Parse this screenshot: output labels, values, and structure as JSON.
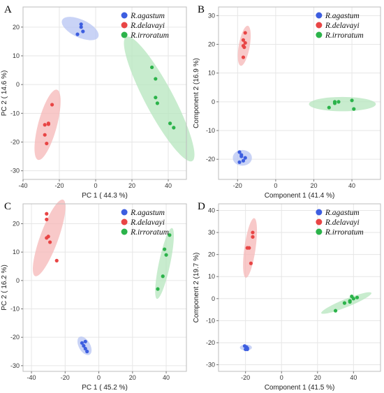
{
  "colors": {
    "R.agastum": "#3d5ee0",
    "R.delavayi": "#e84545",
    "R.irroratum": "#2bb34a",
    "ellipse_fill": {
      "R.agastum": "#b7c4f3",
      "R.delavayi": "#f6b7b7",
      "R.irroratum": "#b6e6bd"
    },
    "grid": "#e6e6e6"
  },
  "chart_data": [
    {
      "panel_label": "A",
      "type": "scatter",
      "xlabel": "PC 1 ( 44.3 %)",
      "ylabel": "PC 2 ( 14.6 %)",
      "xlim": [
        -40,
        50
      ],
      "ylim": [
        -33,
        27
      ],
      "xticks": [
        -40,
        -20,
        0,
        20,
        40
      ],
      "yticks": [
        -30,
        -20,
        -10,
        0,
        10,
        20
      ],
      "grid": true,
      "legend_position": "top-right",
      "series": [
        {
          "name": "R.agastum",
          "x": [
            -10,
            -8,
            -8,
            -7
          ],
          "y": [
            17.5,
            20,
            21,
            18.5
          ],
          "ellipse": {
            "cx": -8.5,
            "cy": 19.5,
            "rx": 3.8,
            "ry": 8.5,
            "angle": 65
          }
        },
        {
          "name": "R.delavayi",
          "x": [
            -27,
            -28,
            -26,
            -28,
            -26,
            -24
          ],
          "y": [
            -20.5,
            -17.5,
            -13.5,
            -14,
            -13.8,
            -7
          ],
          "ellipse": {
            "cx": -26.5,
            "cy": -14,
            "rx": 15.5,
            "ry": 4,
            "angle": 75
          }
        },
        {
          "name": "R.irroratum",
          "x": [
            31,
            33,
            33,
            34,
            41,
            43
          ],
          "y": [
            6,
            2,
            -4.5,
            -6.5,
            -13.5,
            -15
          ],
          "ellipse": {
            "cx": 35,
            "cy": -5,
            "rx": 30,
            "ry": 6,
            "angle": -62
          }
        }
      ]
    },
    {
      "panel_label": "B",
      "type": "scatter",
      "xlabel": "Component 1 (41.4 %)",
      "ylabel": "Component 2 (16.9 %)",
      "xlim": [
        -30,
        55
      ],
      "ylim": [
        -27,
        33
      ],
      "xticks": [
        -20,
        0,
        20,
        40
      ],
      "yticks": [
        -20,
        -10,
        0,
        10,
        20,
        30
      ],
      "grid": true,
      "legend_position": "top-right",
      "series": [
        {
          "name": "R.agastum",
          "x": [
            -19,
            -18,
            -17,
            -16,
            -19,
            -18
          ],
          "y": [
            -17.5,
            -18.5,
            -20.5,
            -19.5,
            -21,
            -19
          ],
          "ellipse": {
            "cx": -17.5,
            "cy": -19.5,
            "rx": 4,
            "ry": 3.3,
            "angle": 0
          }
        },
        {
          "name": "R.delavayi",
          "x": [
            -16,
            -17,
            -16,
            -17,
            -16.5,
            -17
          ],
          "y": [
            24,
            21.5,
            20.5,
            19.5,
            19,
            15.5
          ],
          "ellipse": {
            "cx": -16.5,
            "cy": 19.5,
            "rx": 8.5,
            "ry": 2.3,
            "angle": 80
          }
        },
        {
          "name": "R.irroratum",
          "x": [
            28,
            31,
            33,
            40,
            41,
            31
          ],
          "y": [
            -2,
            0,
            0,
            0.5,
            -2.5,
            -0.5
          ],
          "ellipse": {
            "cx": 35,
            "cy": -0.8,
            "rx": 14,
            "ry": 3,
            "angle": 0
          }
        }
      ]
    },
    {
      "panel_label": "C",
      "type": "scatter",
      "xlabel": "PC 1 ( 45.2 %)",
      "ylabel": "PC 2 ( 16.2 %)",
      "xlim": [
        -45,
        52
      ],
      "ylim": [
        -32,
        27
      ],
      "xticks": [
        -40,
        -20,
        0,
        20,
        40
      ],
      "yticks": [
        -30,
        -20,
        -10,
        0,
        10,
        20
      ],
      "grid": true,
      "legend_position": "top-right",
      "series": [
        {
          "name": "R.agastum",
          "x": [
            -10,
            -8,
            -8,
            -7,
            -9
          ],
          "y": [
            -22,
            -21.5,
            -24,
            -25,
            -23
          ],
          "ellipse": {
            "cx": -8.5,
            "cy": -23,
            "rx": 4.5,
            "ry": 2.5,
            "angle": -60
          }
        },
        {
          "name": "R.delavayi",
          "x": [
            -31,
            -31,
            -30,
            -29,
            -31,
            -25
          ],
          "y": [
            23.5,
            21.5,
            15.5,
            13.5,
            15,
            7
          ],
          "ellipse": {
            "cx": -29.5,
            "cy": 15,
            "rx": 18,
            "ry": 4,
            "angle": 70
          }
        },
        {
          "name": "R.irroratum",
          "x": [
            35,
            38,
            39,
            40,
            42
          ],
          "y": [
            -3,
            1.5,
            11,
            9,
            16
          ],
          "ellipse": {
            "cx": 39,
            "cy": 6,
            "rx": 16,
            "ry": 2.5,
            "angle": 78
          }
        }
      ]
    },
    {
      "panel_label": "D",
      "type": "scatter",
      "xlabel": "Component 1 (41.5 %)",
      "ylabel": "Component 2 (19.7 %)",
      "xlim": [
        -35,
        55
      ],
      "ylim": [
        -33,
        43
      ],
      "xticks": [
        -20,
        0,
        20,
        40
      ],
      "yticks": [
        -30,
        -20,
        -10,
        0,
        10,
        20,
        30,
        40
      ],
      "grid": true,
      "legend_position": "top-right",
      "series": [
        {
          "name": "R.agastum",
          "x": [
            -20.5,
            -19.5,
            -19,
            -20,
            -19
          ],
          "y": [
            -21.5,
            -22,
            -22.5,
            -23,
            -23
          ],
          "ellipse": {
            "cx": -19.8,
            "cy": -22.2,
            "rx": 3,
            "ry": 1.5,
            "angle": 0
          }
        },
        {
          "name": "R.delavayi",
          "x": [
            -16,
            -16,
            -18,
            -19,
            -17
          ],
          "y": [
            30,
            28,
            23,
            23,
            16
          ],
          "ellipse": {
            "cx": -17.5,
            "cy": 23,
            "rx": 15,
            "ry": 2.8,
            "angle": 82
          }
        },
        {
          "name": "R.irroratum",
          "x": [
            30,
            35,
            38,
            38,
            40,
            42,
            39
          ],
          "y": [
            -5.5,
            -2,
            -1,
            -1.5,
            0,
            0.5,
            1
          ],
          "ellipse": {
            "cx": 36,
            "cy": -2,
            "rx": 13.5,
            "ry": 2,
            "angle": 22
          }
        }
      ]
    }
  ]
}
